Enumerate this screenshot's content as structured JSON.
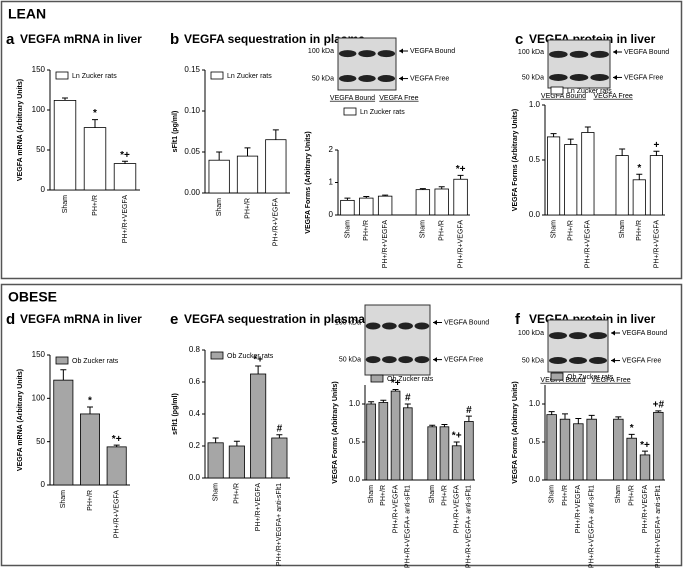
{
  "sections": [
    "LEAN",
    "OBESE"
  ],
  "panels": [
    {
      "letter": "a",
      "title": "VEGFA mRNA in liver"
    },
    {
      "letter": "b",
      "title": "VEGFA sequestration in plasma"
    },
    {
      "letter": "c",
      "title": "VEGFA protein in liver"
    },
    {
      "letter": "d",
      "title": "VEGFA mRNA in liver"
    },
    {
      "letter": "e",
      "title": "VEGFA sequestration in plasma"
    },
    {
      "letter": "f",
      "title": "VEGFA protein in liver"
    }
  ],
  "blots": [
    {
      "markers": [
        "100 kDa",
        "50 kDa"
      ],
      "bands": [
        "VEGFA Bound",
        "VEGFA Free"
      ],
      "groups": [
        "VEGFA Bound",
        "VEGFA Free"
      ]
    },
    {
      "markers": [
        "100 kDa",
        "50 kDa"
      ],
      "bands": [
        "VEGFA Bound",
        "VEGFA Free"
      ],
      "groups": [
        "VEGFA Bound",
        "VEGFA Free"
      ]
    },
    {
      "markers": [
        "100 kDa",
        "50 kDa"
      ],
      "bands": [
        "VEGFA Bound",
        "VEGFA Free"
      ],
      "groups": []
    },
    {
      "markers": [
        "100 kDa",
        "50 kDa"
      ],
      "bands": [
        "VEGFA Bound",
        "VEGFA Free"
      ],
      "groups": [
        "VEGFA Bound",
        "VEGFA Free"
      ]
    }
  ],
  "chart_data": [
    {
      "type": "bar",
      "ylabel": "VEGFA mRNA (Arbitrary Units)",
      "categories": [
        "Sham",
        "PH+/R",
        "PH+/R+VEGFA"
      ],
      "series": [
        {
          "name": "Ln Zucker rats",
          "color": "#ffffff",
          "values": [
            112,
            78,
            33
          ],
          "errors": [
            3,
            10,
            3
          ]
        }
      ],
      "bar_labels": [
        null,
        "*",
        "*+"
      ],
      "ylim": [
        0,
        150
      ],
      "yticks": [
        0,
        50,
        100,
        150
      ]
    },
    {
      "type": "bar",
      "ylabel": "sFlt1 (pg/ml)",
      "categories": [
        "Sham",
        "PH+/R",
        "PH+/R+VEGFA"
      ],
      "series": [
        {
          "name": "Ln Zucker rats",
          "color": "#ffffff",
          "values": [
            0.04,
            0.045,
            0.065
          ],
          "errors": [
            0.01,
            0.01,
            0.012
          ]
        }
      ],
      "bar_labels": [
        null,
        null,
        null
      ],
      "ylim": [
        0,
        0.15
      ],
      "yticks": [
        {
          "value": 0,
          "label": "0.00"
        },
        0.05,
        {
          "value": 0.1,
          "label": "0.10"
        },
        0.15
      ]
    },
    {
      "type": "bar",
      "ylabel": "VEGFA Forms (Arbitrary Units)",
      "categories": [
        "Sham",
        "PH+/R",
        "PH+/R+VEGFA",
        "Sham",
        "PH+/R",
        "PH+/R+VEGFA"
      ],
      "series": [
        {
          "name": "Ln Zucker rats",
          "color": "#ffffff",
          "values": [
            0.45,
            0.52,
            0.58,
            0.78,
            0.8,
            1.1
          ],
          "errors": [
            0.07,
            0.05,
            0.03,
            0.03,
            0.07,
            0.12
          ]
        }
      ],
      "bar_labels": [
        null,
        null,
        null,
        null,
        null,
        "*+"
      ],
      "ylim": [
        0,
        2
      ],
      "yticks": [
        0,
        1,
        2
      ]
    },
    {
      "type": "bar",
      "ylabel": "VEGFA Forms (Arbitrary Units)",
      "categories": [
        "Sham",
        "PH+/R",
        "PH+/R+VEGFA",
        "Sham",
        "PH+/R",
        "PH+/R+VEGFA"
      ],
      "series": [
        {
          "name": "Ln Zucker rats",
          "color": "#ffffff",
          "values": [
            0.71,
            0.64,
            0.75,
            0.54,
            0.32,
            0.54
          ],
          "errors": [
            0.03,
            0.05,
            0.05,
            0.06,
            0.05,
            0.04
          ]
        }
      ],
      "bar_labels": [
        null,
        null,
        null,
        null,
        "*",
        "+"
      ],
      "ylim": [
        0,
        1
      ],
      "yticks": [
        {
          "value": 0,
          "label": "0.0"
        },
        0.5,
        {
          "value": 1,
          "label": "1.0"
        }
      ]
    },
    {
      "type": "bar",
      "ylabel": "VEGFA mRNA (Arbitrary Units)",
      "categories": [
        "Sham",
        "PH+/R",
        "PH+/R+VEGFA"
      ],
      "series": [
        {
          "name": "Ob Zucker rats",
          "color": "#a6a6a6",
          "values": [
            121,
            82,
            44
          ],
          "errors": [
            12,
            8,
            2
          ]
        }
      ],
      "bar_labels": [
        null,
        "*",
        "*+"
      ],
      "ylim": [
        0,
        150
      ],
      "yticks": [
        0,
        50,
        100,
        150
      ]
    },
    {
      "type": "bar",
      "ylabel": "sFlt1 (pg/ml)",
      "categories": [
        "Sham",
        "PH+/R",
        "PH+/R+VEGFA",
        "PH+/R+VEGFA+ anti-sFlt1"
      ],
      "series": [
        {
          "name": "Ob Zucker rats",
          "color": "#a6a6a6",
          "values": [
            0.22,
            0.2,
            0.65,
            0.25
          ],
          "errors": [
            0.03,
            0.03,
            0.05,
            0.02
          ]
        }
      ],
      "bar_labels": [
        null,
        null,
        "*+",
        "#"
      ],
      "ylim": [
        0,
        0.8
      ],
      "yticks": [
        {
          "value": 0,
          "label": "0.0"
        },
        0.2,
        0.4,
        0.6,
        0.8
      ]
    },
    {
      "type": "bar",
      "ylabel": "VEGFA Forms (Arbitrary Units)",
      "categories": [
        "Sham",
        "PH+/R",
        "PH+/R+VEGFA",
        "PH+/R+VEGFA+ anti-sFlt1",
        "Sham",
        "PH+/R",
        "PH+/R+VEGFA",
        "PH+/R+VEGFA+ anti-sFlt1"
      ],
      "series": [
        {
          "name": "Ob Zucker rats",
          "color": "#a6a6a6",
          "values": [
            1.0,
            1.02,
            1.17,
            0.95,
            0.7,
            0.7,
            0.45,
            0.77
          ],
          "errors": [
            0.03,
            0.03,
            0.02,
            0.05,
            0.02,
            0.03,
            0.05,
            0.07
          ]
        }
      ],
      "bar_labels": [
        null,
        null,
        "*+",
        "#",
        null,
        null,
        "*+",
        "#"
      ],
      "ylim": [
        0,
        1.25
      ],
      "yticks": [
        {
          "value": 0,
          "label": "0.0"
        },
        0.5,
        {
          "value": 1,
          "label": "1.0"
        }
      ]
    },
    {
      "type": "bar",
      "ylabel": "VEGFA Forms (Arbitrary Units)",
      "categories": [
        "Sham",
        "PH+/R",
        "PH+/R+VEGFA",
        "PH+/R+VEGFA+ anti-sFlt1",
        "Sham",
        "PH+/R",
        "PH+/R+VEGFA",
        "PH+/R+VEGFA+ anti-sFlt1"
      ],
      "series": [
        {
          "name": "Ob Zucker rats",
          "color": "#a6a6a6",
          "values": [
            0.86,
            0.8,
            0.74,
            0.8,
            0.8,
            0.55,
            0.33,
            0.89
          ],
          "errors": [
            0.04,
            0.07,
            0.07,
            0.05,
            0.03,
            0.05,
            0.05,
            0.02
          ]
        }
      ],
      "bar_labels": [
        null,
        null,
        null,
        null,
        null,
        "*",
        "*+",
        "+#"
      ],
      "ylim": [
        0,
        1.25
      ],
      "yticks": [
        {
          "value": 0,
          "label": "0.0"
        },
        0.5,
        {
          "value": 1,
          "label": "1.0"
        }
      ]
    }
  ]
}
